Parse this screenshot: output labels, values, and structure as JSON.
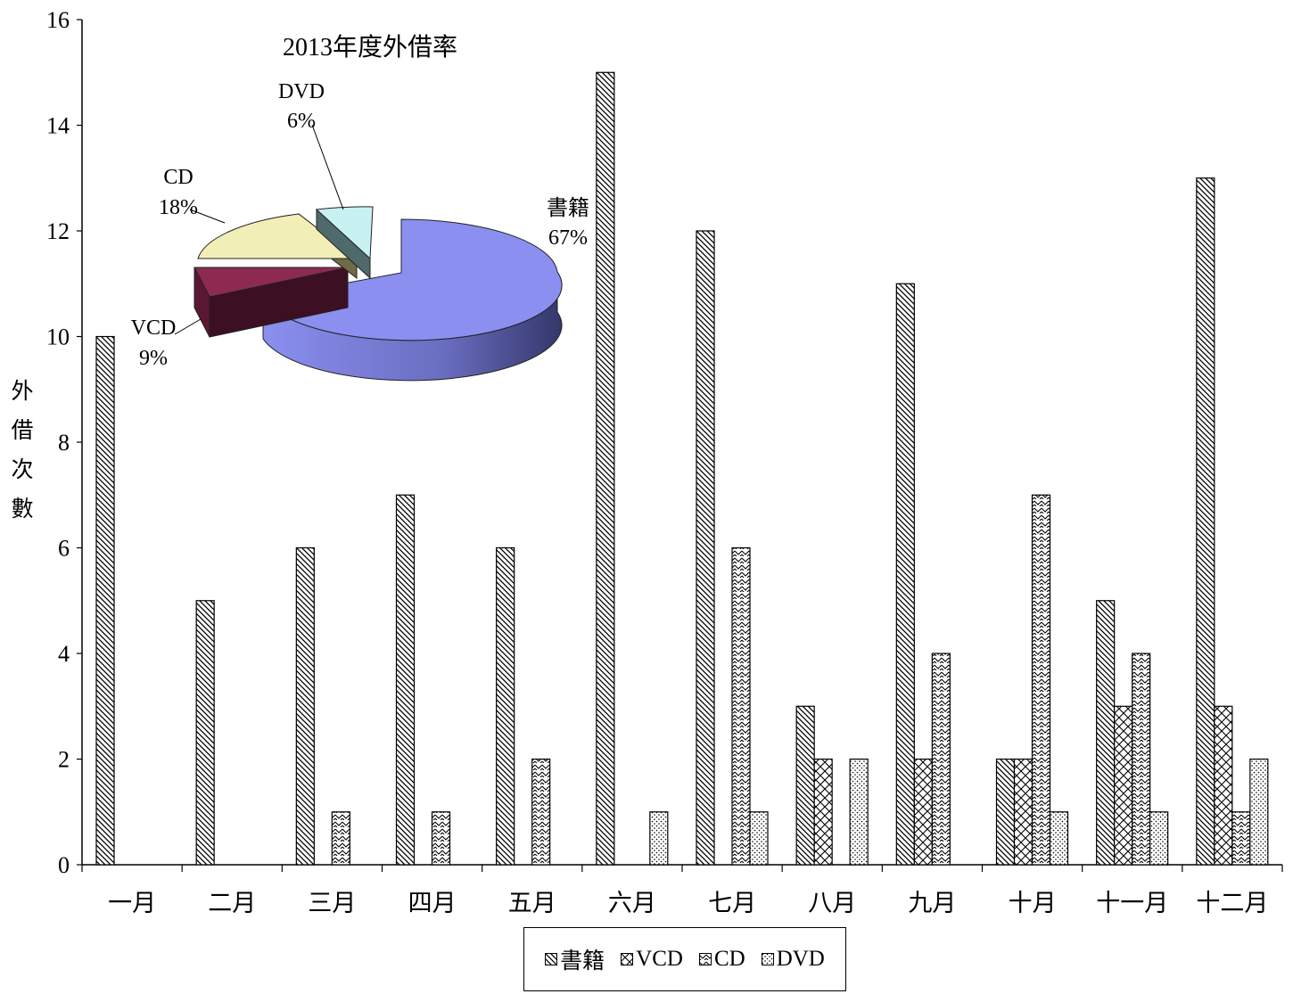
{
  "chart_data": [
    {
      "type": "bar",
      "ylabel": "外借次數",
      "xlabel": "",
      "ylim": [
        0,
        16
      ],
      "yticks": [
        0,
        2,
        4,
        6,
        8,
        10,
        12,
        14,
        16
      ],
      "categories": [
        "一月",
        "二月",
        "三月",
        "四月",
        "五月",
        "六月",
        "七月",
        "八月",
        "九月",
        "十月",
        "十一月",
        "十二月"
      ],
      "series": [
        {
          "name": "書籍",
          "pattern": "diag-right",
          "values": [
            10,
            5,
            6,
            7,
            6,
            15,
            12,
            3,
            11,
            2,
            5,
            13
          ]
        },
        {
          "name": "VCD",
          "pattern": "cross",
          "values": [
            0,
            0,
            0,
            0,
            0,
            0,
            0,
            2,
            2,
            2,
            3,
            3
          ]
        },
        {
          "name": "CD",
          "pattern": "wave",
          "values": [
            0,
            0,
            1,
            1,
            2,
            0,
            6,
            0,
            4,
            7,
            4,
            1
          ]
        },
        {
          "name": "DVD",
          "pattern": "dots",
          "values": [
            0,
            0,
            0,
            0,
            0,
            1,
            1,
            2,
            0,
            1,
            1,
            2
          ]
        }
      ],
      "legend": "bottom",
      "grid": false
    },
    {
      "type": "pie",
      "title": "2013年度外借率",
      "slices": [
        {
          "label": "書籍",
          "percent_label": "67%",
          "value": 67,
          "color": "#8b8ff0",
          "side_color": "#4b4f9a"
        },
        {
          "label": "VCD",
          "percent_label": "9%",
          "value": 9,
          "color": "#8c2a52",
          "side_color": "#3d0f22"
        },
        {
          "label": "CD",
          "percent_label": "18%",
          "value": 18,
          "color": "#f1eeb8",
          "side_color": "#6e6a45"
        },
        {
          "label": "DVD",
          "percent_label": "6%",
          "value": 6,
          "color": "#c8f1f1",
          "side_color": "#4e6a6a"
        }
      ]
    }
  ]
}
